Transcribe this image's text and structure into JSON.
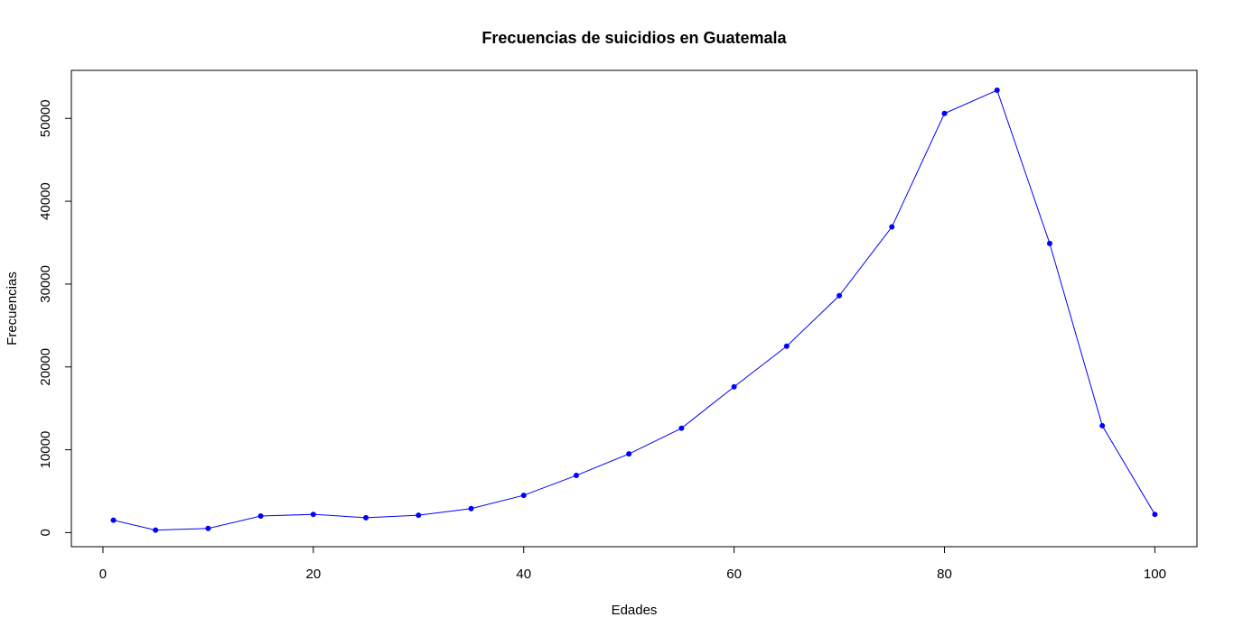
{
  "chart_data": {
    "type": "line",
    "title": "Frecuencias de suicidios en Guatemala",
    "xlabel": "Edades",
    "ylabel": "Frecuencias",
    "xlim": [
      -3.0,
      104.0
    ],
    "ylim": [
      -1700,
      55800
    ],
    "xticks": [
      0,
      20,
      40,
      60,
      80,
      100
    ],
    "yticks": [
      0,
      10000,
      20000,
      30000,
      40000,
      50000
    ],
    "grid": false,
    "line_color": "#0000ff",
    "series": [
      {
        "x": [
          1,
          5,
          10,
          15,
          20,
          25,
          30,
          35,
          40,
          45,
          50,
          55,
          60,
          65,
          70,
          75,
          80,
          85,
          90,
          95,
          100
        ],
        "values": [
          1500,
          300,
          500,
          2000,
          2200,
          1800,
          2100,
          2900,
          4500,
          6900,
          9500,
          12600,
          17600,
          22500,
          28600,
          36900,
          50600,
          53400,
          34900,
          12900,
          2200
        ]
      }
    ]
  }
}
